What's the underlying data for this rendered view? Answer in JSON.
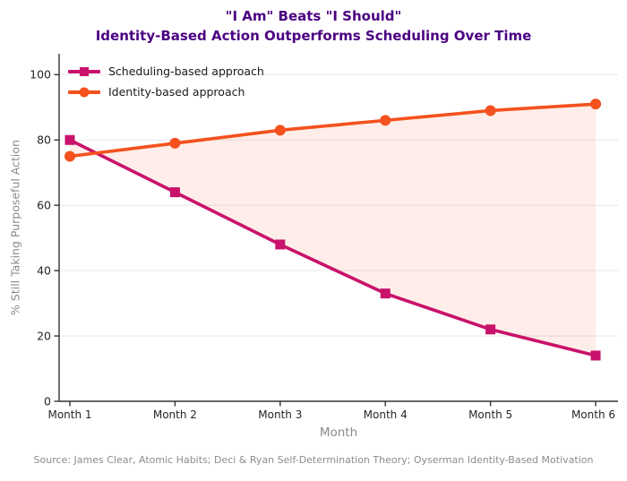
{
  "header": {
    "title_color": "#4B0082"
  },
  "chart_data": {
    "type": "line",
    "title": "\"I Am\" Beats \"I Should\"",
    "subtitle": "Identity-Based Action Outperforms Scheduling Over Time",
    "categories": [
      "Month 1",
      "Month 2",
      "Month 3",
      "Month 4",
      "Month 5",
      "Month 6"
    ],
    "series": [
      {
        "name": "Scheduling-based approach",
        "values": [
          80,
          64,
          48,
          33,
          22,
          14
        ],
        "color": "#C9126B",
        "marker": "square"
      },
      {
        "name": "Identity-based approach",
        "values": [
          75,
          79,
          83,
          86,
          89,
          91
        ],
        "color": "#F4511E",
        "marker": "circle"
      }
    ],
    "fill_between": {
      "color": "#F4511E",
      "opacity": 0.1
    },
    "xlabel": "Month",
    "ylabel": "% Still Taking Purposeful Action",
    "yticks": [
      0,
      20,
      40,
      60,
      80,
      100
    ],
    "ylim": [
      0,
      106.4
    ],
    "grid": "horizontal",
    "grid_color": "#E9E9E9",
    "tick_label_color": "#262626",
    "axis_label_color": "#8a8a8a",
    "spine_color": "#333333",
    "legend_position": "upper-left"
  },
  "footer": {
    "source": "Source: James Clear, Atomic Habits; Deci & Ryan Self-Determination Theory; Oyserman Identity-Based Motivation"
  }
}
